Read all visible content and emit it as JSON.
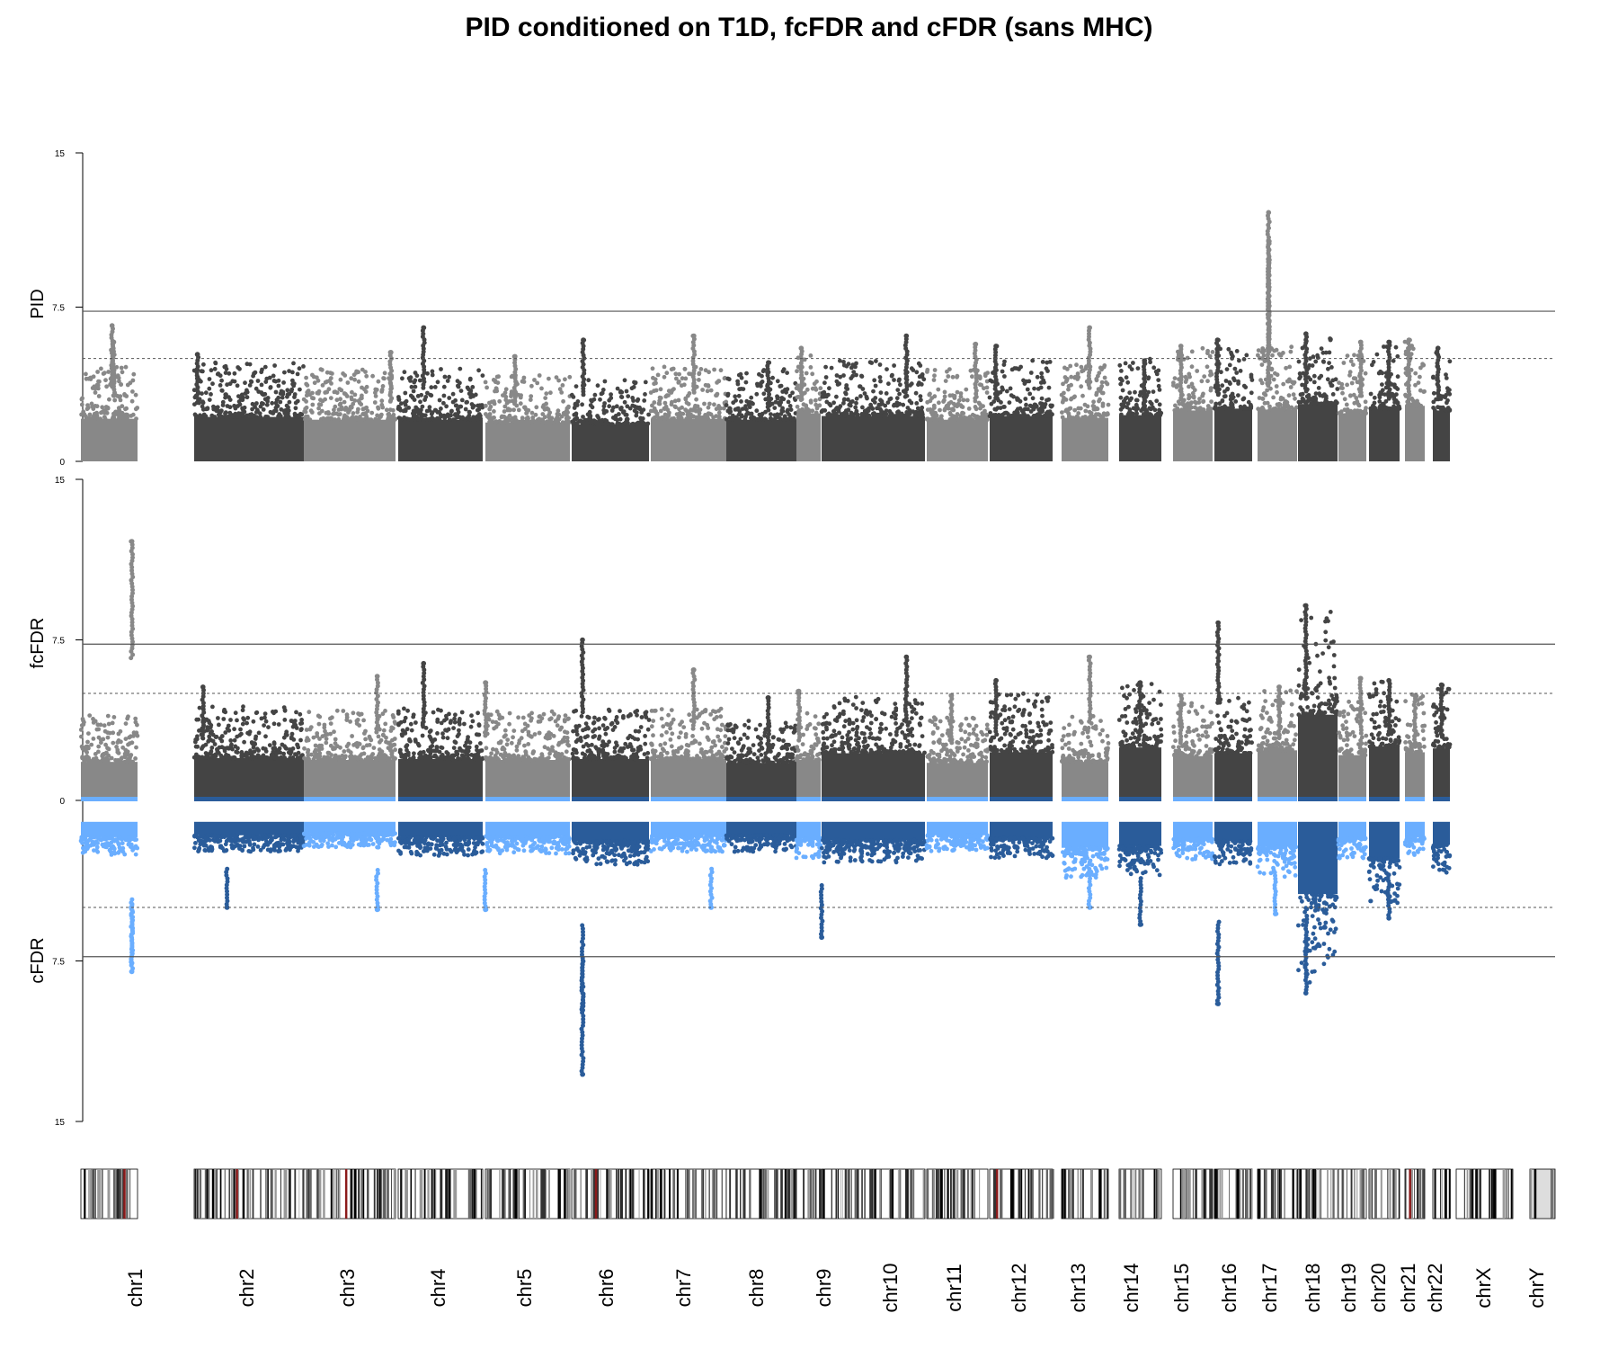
{
  "chart_data": {
    "type": "scatter",
    "title": "PID conditioned on T1D, fcFDR and cFDR (sans MHC)",
    "panels": [
      {
        "id": "pid",
        "ylabel": "PID",
        "ylim": [
          0,
          15
        ],
        "ticks": [
          "0",
          "7.5",
          "15"
        ],
        "direction": "up",
        "significance_line": 7.3,
        "suggestive_line": 5.0
      },
      {
        "id": "fcfdr",
        "ylabel": "fcFDR",
        "ylim": [
          0,
          15
        ],
        "ticks": [
          "0",
          "7.5",
          "15"
        ],
        "direction": "up",
        "significance_line": 7.3,
        "suggestive_line": 5.0
      },
      {
        "id": "cfdr",
        "ylabel": "cFDR",
        "ylim": [
          0,
          15
        ],
        "ticks": [
          "7.5",
          "15"
        ],
        "direction": "down",
        "significance_line": 7.3,
        "suggestive_line": 5.0
      }
    ],
    "colors": {
      "gray_light": "#888888",
      "gray_dark": "#444444",
      "blue_light": "#6aaeff",
      "blue_dark": "#2a5c9a",
      "line": "#555555",
      "band_red": "#8b1a1a"
    },
    "chromosomes": [
      {
        "name": "chr1",
        "bulk": [
          4.6,
          4.0,
          2.6
        ],
        "peaks": [
          [
            0.55,
            6.6
          ],
          [
            0.58,
            5.8
          ]
        ],
        "fc_peaks": [
          [
            0.9,
            12.1
          ]
        ],
        "c_peaks": [
          [
            0.9,
            7.6
          ],
          [
            0.9,
            8.0
          ]
        ],
        "gap": 0.1
      },
      {
        "name": "chr2",
        "bulk": [
          4.8,
          4.4,
          2.4
        ],
        "peaks": [
          [
            0.03,
            5.2
          ]
        ],
        "fc_peaks": [
          [
            0.08,
            5.3
          ]
        ],
        "c_peaks": [
          [
            0.3,
            5.0
          ]
        ]
      },
      {
        "name": "chr3",
        "bulk": [
          4.5,
          4.2,
          2.2
        ],
        "peaks": [
          [
            0.95,
            5.3
          ]
        ],
        "fc_peaks": [
          [
            0.8,
            5.8
          ]
        ],
        "c_peaks": [
          [
            0.8,
            5.1
          ]
        ]
      },
      {
        "name": "chr4",
        "bulk": [
          4.5,
          4.3,
          2.6
        ],
        "peaks": [
          [
            0.3,
            6.5
          ]
        ],
        "fc_peaks": [
          [
            0.3,
            6.4
          ]
        ],
        "c_peaks": []
      },
      {
        "name": "chr5",
        "bulk": [
          4.2,
          4.2,
          2.5
        ],
        "peaks": [
          [
            0.35,
            5.1
          ]
        ],
        "fc_peaks": [
          [
            0.0,
            5.5
          ]
        ],
        "c_peaks": [
          [
            0.0,
            5.1
          ]
        ]
      },
      {
        "name": "chr6",
        "bulk": [
          4.0,
          4.3,
          3.0
        ],
        "peaks": [
          [
            0.15,
            5.9
          ]
        ],
        "fc_peaks": [
          [
            0.14,
            7.5
          ]
        ],
        "c_peaks": [
          [
            0.14,
            9.8
          ],
          [
            0.14,
            12.8
          ]
        ]
      },
      {
        "name": "chr7",
        "bulk": [
          4.6,
          4.3,
          2.4
        ],
        "peaks": [
          [
            0.57,
            6.1
          ]
        ],
        "fc_peaks": [
          [
            0.57,
            6.1
          ]
        ],
        "c_peaks": [
          [
            0.8,
            5.0
          ]
        ]
      },
      {
        "name": "chr8",
        "bulk": [
          4.5,
          3.9,
          2.4
        ],
        "peaks": [
          [
            0.6,
            4.8
          ]
        ],
        "fc_peaks": [
          [
            0.6,
            4.8
          ]
        ],
        "c_peaks": []
      },
      {
        "name": "chr9",
        "bulk": [
          5.2,
          4.2,
          2.7
        ],
        "peaks": [
          [
            0.2,
            5.5
          ]
        ],
        "fc_peaks": [
          [
            0.1,
            5.1
          ]
        ],
        "c_peaks": []
      },
      {
        "name": "chr10",
        "bulk": [
          4.9,
          4.9,
          2.9
        ],
        "peaks": [
          [
            0.82,
            6.1
          ]
        ],
        "fc_peaks": [
          [
            0.82,
            6.7
          ]
        ],
        "c_peaks": [
          [
            0.0,
            6.4
          ]
        ]
      },
      {
        "name": "chr11",
        "bulk": [
          4.5,
          3.9,
          2.4
        ],
        "peaks": [
          [
            0.8,
            5.7
          ]
        ],
        "fc_peaks": [
          [
            0.4,
            4.9
          ]
        ],
        "c_peaks": []
      },
      {
        "name": "chr12",
        "bulk": [
          4.9,
          5.0,
          2.7
        ],
        "peaks": [
          [
            0.1,
            5.6
          ]
        ],
        "fc_peaks": [
          [
            0.1,
            5.6
          ]
        ],
        "c_peaks": []
      },
      {
        "name": "chr13",
        "bulk": [
          4.7,
          4.0,
          3.7
        ],
        "peaks": [
          [
            0.6,
            6.5
          ]
        ],
        "fc_peaks": [
          [
            0.6,
            6.7
          ]
        ],
        "c_peaks": [
          [
            0.6,
            5.0
          ]
        ]
      },
      {
        "name": "chr14",
        "bulk": [
          5.0,
          5.5,
          3.5
        ],
        "peaks": [
          [
            0.6,
            4.9
          ]
        ],
        "fc_peaks": [
          [
            0.5,
            5.5
          ]
        ],
        "c_peaks": [
          [
            0.5,
            5.8
          ]
        ]
      },
      {
        "name": "chr15",
        "bulk": [
          5.5,
          4.6,
          2.8
        ],
        "peaks": [
          [
            0.2,
            5.6
          ]
        ],
        "fc_peaks": [
          [
            0.2,
            4.9
          ]
        ],
        "c_peaks": []
      },
      {
        "name": "chr16",
        "bulk": [
          5.7,
          4.9,
          3.0
        ],
        "peaks": [
          [
            0.08,
            5.9
          ]
        ],
        "fc_peaks": [
          [
            0.1,
            8.3
          ]
        ],
        "c_peaks": [
          [
            0.1,
            9.5
          ]
        ]
      },
      {
        "name": "chr17",
        "bulk": [
          5.6,
          5.2,
          3.6
        ],
        "peaks": [
          [
            0.28,
            12.1
          ],
          [
            0.28,
            10.7
          ],
          [
            0.28,
            9.7
          ],
          [
            0.28,
            6.7
          ]
        ],
        "fc_peaks": [
          [
            0.55,
            5.3
          ]
        ],
        "c_peaks": [
          [
            0.45,
            5.3
          ]
        ]
      },
      {
        "name": "chr18",
        "bulk": [
          6.2,
          8.9,
          8.5
        ],
        "peaks": [
          [
            0.2,
            6.2
          ]
        ],
        "fc_peaks": [
          [
            0.2,
            9.1
          ]
        ],
        "c_peaks": [
          [
            0.2,
            9.0
          ]
        ]
      },
      {
        "name": "chr19",
        "bulk": [
          5.2,
          4.7,
          2.7
        ],
        "peaks": [
          [
            0.8,
            5.8
          ]
        ],
        "fc_peaks": [
          [
            0.8,
            5.7
          ]
        ],
        "c_peaks": []
      },
      {
        "name": "chr20",
        "bulk": [
          5.7,
          5.6,
          4.8
        ],
        "peaks": [
          [
            0.65,
            5.8
          ]
        ],
        "fc_peaks": [
          [
            0.65,
            5.6
          ]
        ],
        "c_peaks": [
          [
            0.65,
            5.5
          ]
        ]
      },
      {
        "name": "chr21",
        "bulk": [
          6.0,
          5.0,
          2.6
        ],
        "peaks": [
          [
            0.2,
            5.9
          ]
        ],
        "fc_peaks": [
          [
            0.5,
            4.9
          ]
        ],
        "c_peaks": []
      },
      {
        "name": "chr22",
        "bulk": [
          5.5,
          5.4,
          3.4
        ],
        "peaks": [
          [
            0.3,
            5.5
          ]
        ],
        "fc_peaks": [
          [
            0.5,
            5.4
          ]
        ],
        "c_peaks": []
      },
      {
        "name": "chrX",
        "bulk": [
          0,
          0,
          0
        ],
        "peaks": [],
        "fc_peaks": [],
        "c_peaks": []
      },
      {
        "name": "chrY",
        "bulk": [
          0,
          0,
          0
        ],
        "peaks": [],
        "fc_peaks": [],
        "c_peaks": []
      }
    ]
  }
}
